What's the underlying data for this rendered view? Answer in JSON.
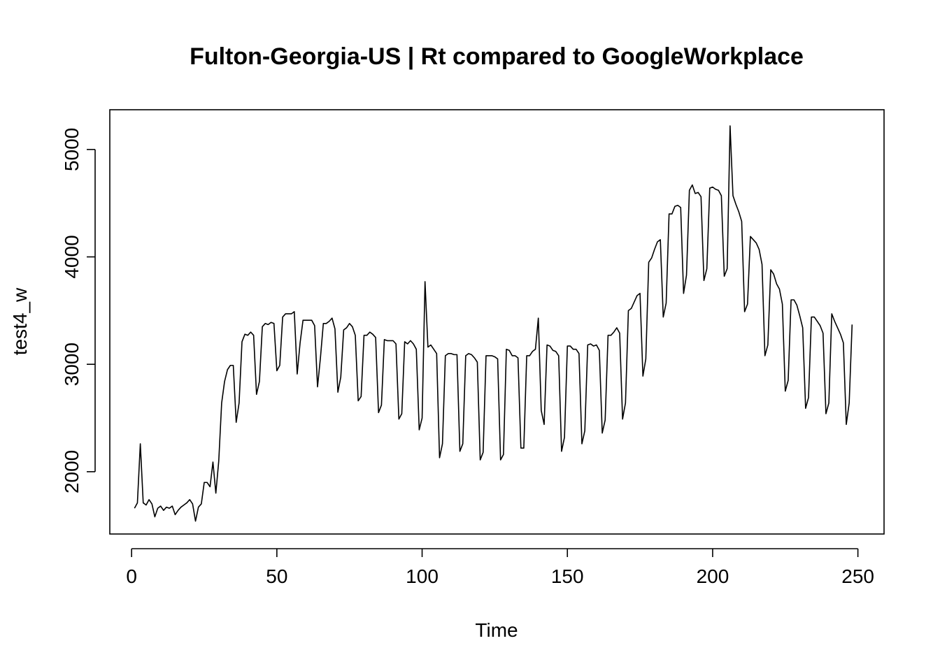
{
  "chart_data": {
    "type": "line",
    "title": "Fulton-Georgia-US | Rt compared to GoogleWorkplace",
    "xlabel": "Time",
    "ylabel": "test4_w",
    "xlim": [
      -7.5,
      259
    ],
    "ylim": [
      1420,
      5370
    ],
    "xticks": [
      0,
      50,
      100,
      150,
      200,
      250
    ],
    "xtick_labels": [
      "0",
      "50",
      "100",
      "150",
      "200",
      "250"
    ],
    "yticks": [
      2000,
      3000,
      4000,
      5000
    ],
    "ytick_labels": [
      "2000",
      "3000",
      "4000",
      "5000"
    ],
    "grid": false,
    "line_color": "#000000",
    "series": [
      {
        "x": [
          1,
          2,
          3,
          4,
          5,
          6,
          7,
          8,
          9,
          10,
          11,
          12,
          13,
          14,
          15,
          16,
          17,
          18,
          19,
          20,
          21,
          22,
          23,
          24,
          25,
          26,
          27,
          28,
          29,
          30,
          31,
          32,
          33,
          34,
          35,
          36,
          37,
          38,
          39,
          40,
          41,
          42,
          43,
          44,
          45,
          46,
          47,
          48,
          49,
          50,
          51,
          52,
          53,
          54,
          55,
          56,
          57,
          58,
          59,
          60,
          61,
          62,
          63,
          64,
          65,
          66,
          67,
          68,
          69,
          70,
          71,
          72,
          73,
          74,
          75,
          76,
          77,
          78,
          79,
          80,
          81,
          82,
          83,
          84,
          85,
          86,
          87,
          88,
          89,
          90,
          91,
          92,
          93,
          94,
          95,
          96,
          97,
          98,
          99,
          100,
          101,
          102,
          103,
          104,
          105,
          106,
          107,
          108,
          109,
          110,
          111,
          112,
          113,
          114,
          115,
          116,
          117,
          118,
          119,
          120,
          121,
          122,
          123,
          124,
          125,
          126,
          127,
          128,
          129,
          130,
          131,
          132,
          133,
          134,
          135,
          136,
          137,
          138,
          139,
          140,
          141,
          142,
          143,
          144,
          145,
          146,
          147,
          148,
          149,
          150,
          151,
          152,
          153,
          154,
          155,
          156,
          157,
          158,
          159,
          160,
          161,
          162,
          163,
          164,
          165,
          166,
          167,
          168,
          169,
          170,
          171,
          172,
          173,
          174,
          175,
          176,
          177,
          178,
          179,
          180,
          181,
          182,
          183,
          184,
          185,
          186,
          187,
          188,
          189,
          190,
          191,
          192,
          193,
          194,
          195,
          196,
          197,
          198,
          199,
          200,
          201,
          202,
          203,
          204,
          205,
          206,
          207,
          208,
          209,
          210,
          211,
          212,
          213,
          214,
          215,
          216,
          217,
          218,
          219,
          220,
          221,
          222,
          223,
          224,
          225,
          226,
          227,
          228,
          229,
          230,
          231,
          232,
          233,
          234,
          235,
          236,
          237,
          238,
          239,
          240,
          241,
          242,
          243,
          244,
          245,
          246,
          247,
          248
        ],
        "values": [
          1660,
          1710,
          2260,
          1710,
          1690,
          1740,
          1700,
          1580,
          1660,
          1680,
          1640,
          1670,
          1660,
          1680,
          1600,
          1640,
          1670,
          1690,
          1710,
          1740,
          1700,
          1540,
          1670,
          1700,
          1900,
          1900,
          1860,
          2090,
          1800,
          2100,
          2640,
          2840,
          2950,
          2990,
          2990,
          2460,
          2640,
          3210,
          3280,
          3270,
          3300,
          3270,
          2720,
          2840,
          3350,
          3380,
          3370,
          3390,
          3380,
          2940,
          2990,
          3440,
          3470,
          3470,
          3470,
          3490,
          2910,
          3200,
          3410,
          3410,
          3410,
          3410,
          3360,
          2790,
          3060,
          3380,
          3380,
          3400,
          3430,
          3330,
          2740,
          2880,
          3320,
          3340,
          3380,
          3350,
          3270,
          2660,
          2700,
          3270,
          3270,
          3300,
          3280,
          3250,
          2550,
          2620,
          3230,
          3220,
          3220,
          3220,
          3190,
          2490,
          2540,
          3210,
          3190,
          3220,
          3190,
          3140,
          2390,
          2500,
          3770,
          3160,
          3180,
          3140,
          3100,
          2130,
          2260,
          3080,
          3100,
          3100,
          3090,
          3090,
          2190,
          2260,
          3080,
          3100,
          3090,
          3060,
          3020,
          2110,
          2180,
          3080,
          3080,
          3080,
          3070,
          3050,
          2110,
          2160,
          3140,
          3130,
          3080,
          3080,
          3060,
          2220,
          2220,
          3080,
          3080,
          3120,
          3140,
          3430,
          2570,
          2440,
          3180,
          3170,
          3130,
          3120,
          3080,
          2190,
          2320,
          3170,
          3170,
          3140,
          3140,
          3100,
          2260,
          2380,
          3180,
          3190,
          3170,
          3180,
          3130,
          2360,
          2480,
          3270,
          3270,
          3300,
          3340,
          3290,
          2490,
          2640,
          3500,
          3520,
          3580,
          3640,
          3660,
          2890,
          3050,
          3950,
          3990,
          4070,
          4140,
          4160,
          3440,
          3570,
          4400,
          4400,
          4470,
          4480,
          4460,
          3660,
          3830,
          4620,
          4670,
          4590,
          4600,
          4560,
          3780,
          3890,
          4640,
          4650,
          4630,
          4620,
          4570,
          3820,
          3890,
          5220,
          4570,
          4490,
          4420,
          4330,
          3490,
          3560,
          4190,
          4160,
          4130,
          4070,
          3930,
          3080,
          3180,
          3880,
          3840,
          3750,
          3700,
          3560,
          2750,
          2850,
          3600,
          3600,
          3550,
          3450,
          3340,
          2590,
          2690,
          3440,
          3440,
          3400,
          3360,
          3290,
          2540,
          2640,
          3470,
          3400,
          3340,
          3280,
          3200,
          2440,
          2640,
          3370
        ]
      }
    ]
  }
}
